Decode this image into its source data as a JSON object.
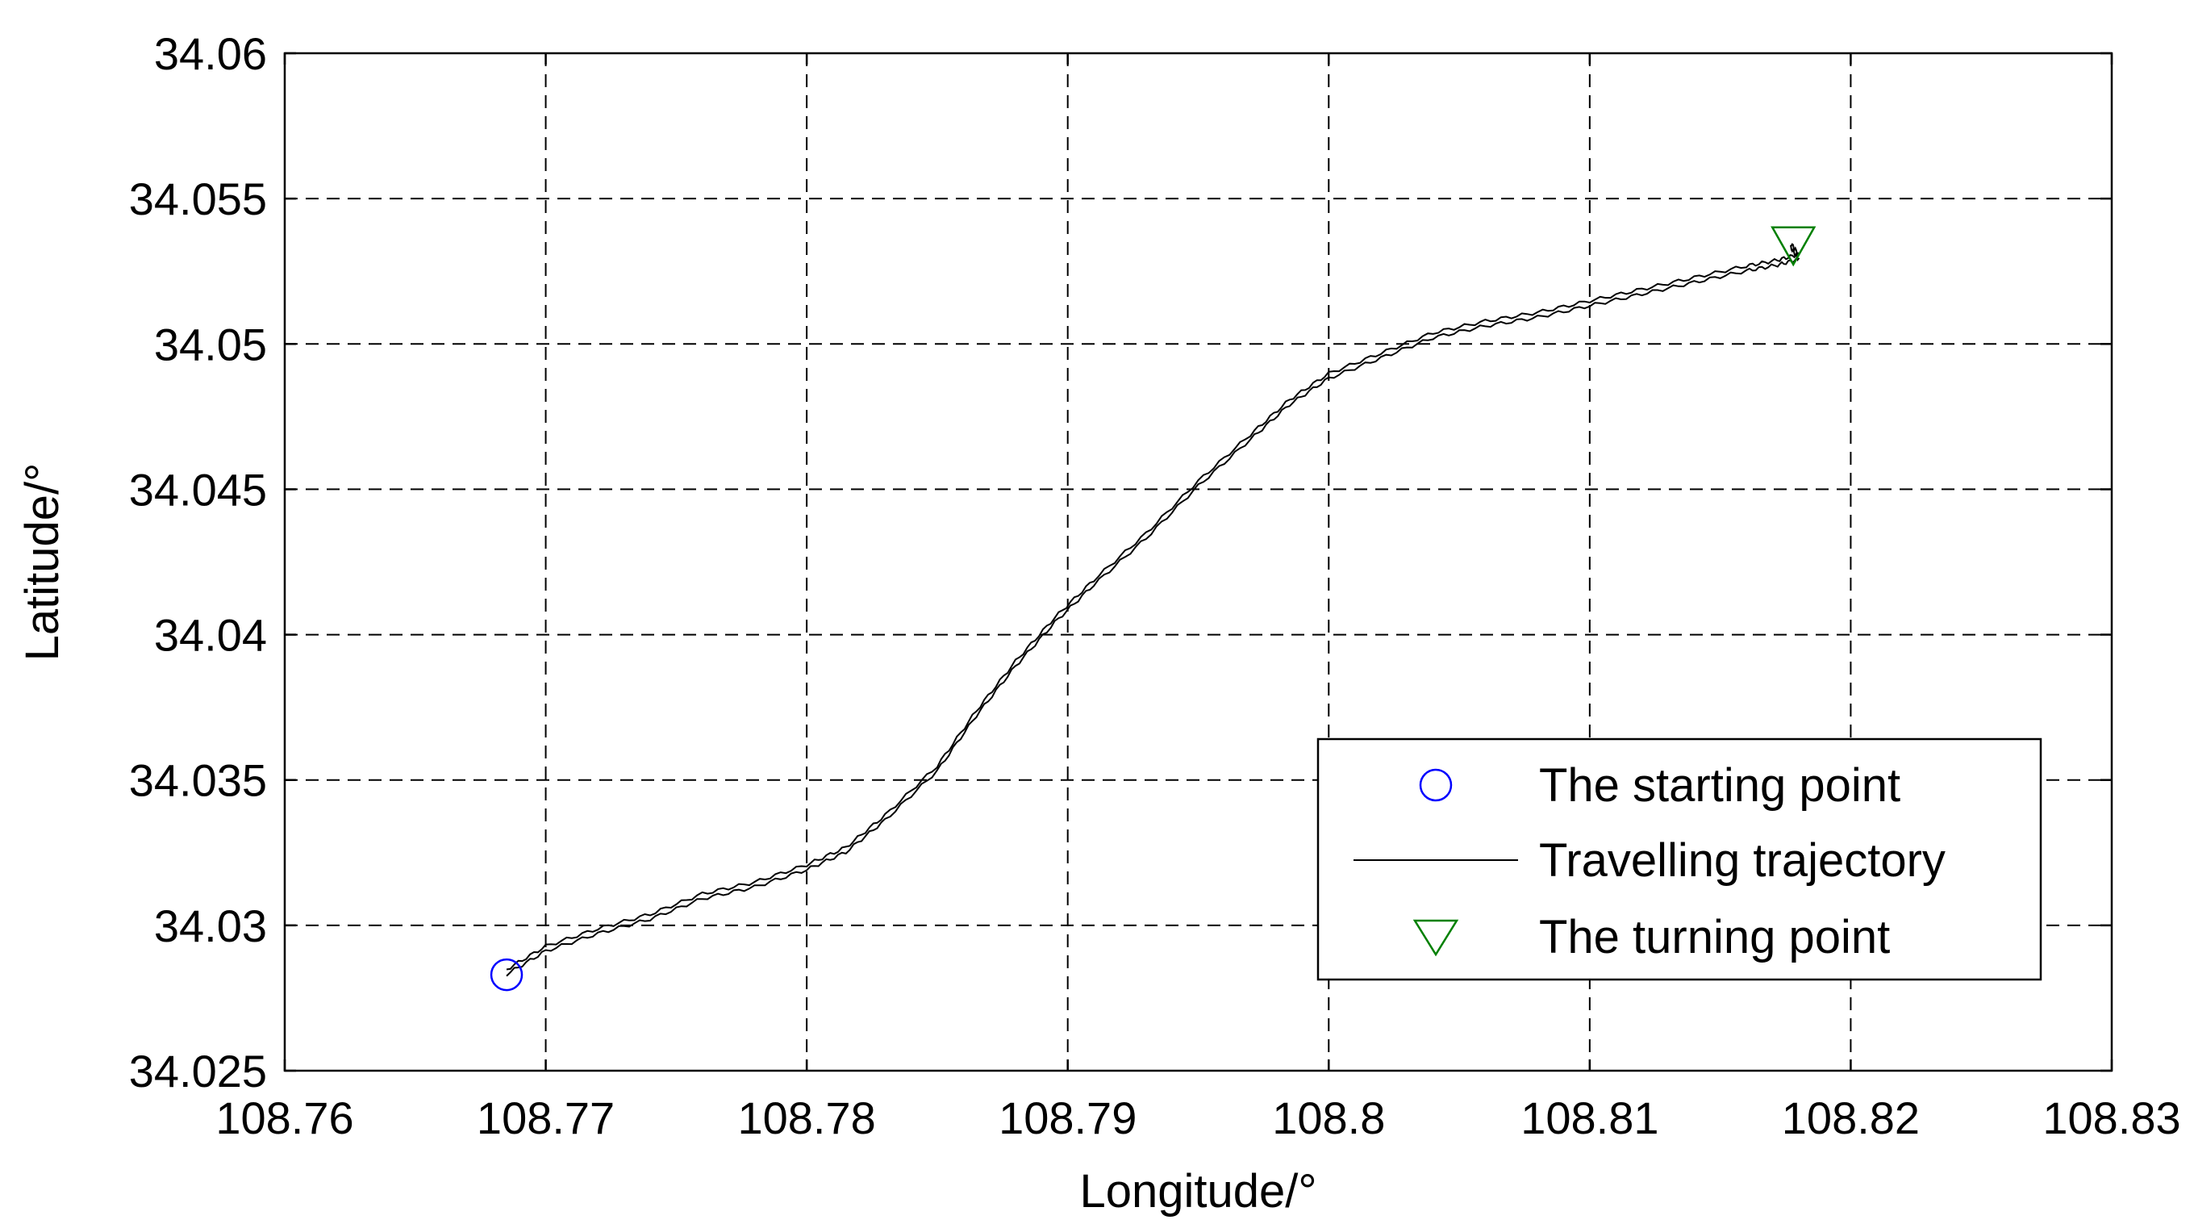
{
  "chart_data": {
    "type": "line",
    "xlabel": "Longitude/°",
    "ylabel": "Latitude/°",
    "xlim": [
      108.76,
      108.83
    ],
    "ylim": [
      34.025,
      34.06
    ],
    "xticks": [
      108.76,
      108.77,
      108.78,
      108.79,
      108.8,
      108.81,
      108.82,
      108.83
    ],
    "xtick_labels": [
      "108.76",
      "108.77",
      "108.78",
      "108.79",
      "108.8",
      "108.81",
      "108.82",
      "108.83"
    ],
    "yticks": [
      34.025,
      34.03,
      34.035,
      34.04,
      34.045,
      34.05,
      34.055,
      34.06
    ],
    "ytick_labels": [
      "34.025",
      "34.03",
      "34.035",
      "34.04",
      "34.045",
      "34.05",
      "34.055",
      "34.06"
    ],
    "grid": true,
    "legend_position": "bottom-right",
    "series": [
      {
        "name": "The starting point",
        "marker": "circle",
        "color": "#0000ff",
        "x": [
          108.7685
        ],
        "y": [
          34.0283
        ]
      },
      {
        "name": "Travelling trajectory",
        "marker": "none",
        "color": "#000000",
        "x": [
          108.7685,
          108.77,
          108.772,
          108.774,
          108.776,
          108.778,
          108.78,
          108.7815,
          108.783,
          108.785,
          108.7865,
          108.788,
          108.7895,
          108.791,
          108.793,
          108.795,
          108.797,
          108.7985,
          108.8,
          108.802,
          108.804,
          108.806,
          108.808,
          108.81,
          108.812,
          108.814,
          108.816,
          108.8172,
          108.818,
          108.8177
        ],
        "y": [
          34.0284,
          34.0292,
          34.0298,
          34.0303,
          34.031,
          34.0314,
          34.032,
          34.0326,
          34.0337,
          34.0354,
          34.0373,
          34.039,
          34.0405,
          34.0418,
          34.0434,
          34.0452,
          34.0468,
          34.048,
          34.0489,
          34.0496,
          34.0503,
          34.0507,
          34.051,
          34.0514,
          34.0518,
          34.0522,
          34.0526,
          34.0528,
          34.053,
          34.0534
        ]
      },
      {
        "name": "The turning point",
        "marker": "triangle-down",
        "color": "#008000",
        "x": [
          108.8178
        ],
        "y": [
          34.0534
        ]
      }
    ]
  }
}
